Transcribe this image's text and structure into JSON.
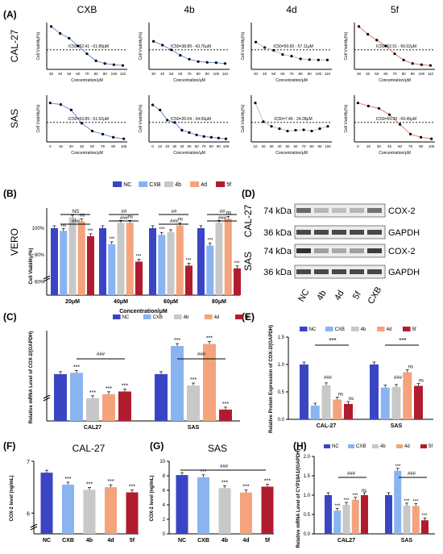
{
  "panel_letters": [
    "(A)",
    "(B)",
    "(C)",
    "(D)",
    "(E)",
    "(F)",
    "(G)",
    "(H)"
  ],
  "colors": {
    "NC": "#3a45c4",
    "CXB": "#8ab4f0",
    "4b": "#c8c8c8",
    "4d": "#f4a37d",
    "5f": "#b01c2e",
    "fit_blue": "#6f8fd8",
    "fit_gray": "#bdbdbd",
    "fit_red": "#e87a6e",
    "sig": "#000000"
  },
  "panelA": {
    "col_titles": [
      "CXB",
      "4b",
      "4d",
      "5f"
    ],
    "row_labels": [
      "CAL-27",
      "SAS"
    ],
    "ylabel": "Cell Viability(%)",
    "xlabel": "Concentration/μM",
    "ic50_texts": [
      [
        "IC50=52.41 - 61.89μM",
        "IC50=38.89 - 43.76μM",
        "IC50=50.60 - 57.11μM",
        "IC50=62.51 - 66.02μM"
      ],
      [
        "IC50=53.89 - 61.52μM",
        "IC50=26.04 - 34.59μM",
        "IC50=7.46 - 24.28μM",
        "IC50=59.39 - 69.49μM"
      ]
    ],
    "row1_xticks": [
      "30",
      "40",
      "50",
      "60",
      "70",
      "80",
      "90",
      "100",
      "110"
    ],
    "row2_xticks_cxb": [
      "0",
      "15",
      "30",
      "45",
      "60",
      "75",
      "90",
      "105"
    ],
    "row2_xticks_4b": [
      "0",
      "10",
      "20",
      "30",
      "40",
      "50",
      "60",
      "70",
      "80",
      "90",
      "100"
    ],
    "row2_xticks_4d": [
      "10",
      "20",
      "30",
      "40",
      "50",
      "60",
      "70",
      "80",
      "90",
      "100"
    ],
    "row2_xticks_5f": [
      "0",
      "15",
      "30",
      "45",
      "60",
      "75",
      "90",
      "105"
    ]
  },
  "legend": {
    "labels": [
      "NC",
      "CXB",
      "4b",
      "4d",
      "5f"
    ]
  },
  "panelD": {
    "kda": [
      "74 kDa",
      "36 kDa",
      "74 kDa",
      "36 kDa"
    ],
    "bands": [
      "COX-2",
      "GAPDH",
      "COX-2",
      "GAPDH"
    ],
    "rows": [
      "CAL-27",
      "SAS"
    ],
    "lanes": [
      "NC",
      "4b",
      "4d",
      "5f",
      "CXB"
    ]
  },
  "sig": {
    "ns": "ns",
    "NS": "NS",
    "s1": "*",
    "s3": "***",
    "h2": "##",
    "h3": "###"
  },
  "chart_data": [
    {
      "id": "A",
      "type": "scatter",
      "note": "8 dose-response panels (CXB, 4b, 4d, 5f × CAL-27, SAS) with sigmoid fits; dashed line at 50%",
      "panels": [
        {
          "drug": "CXB",
          "cell": "CAL-27",
          "x": [
            30,
            40,
            50,
            60,
            70,
            80,
            90,
            100,
            110
          ],
          "y": [
            110,
            92,
            80,
            60,
            40,
            22,
            15,
            12,
            10
          ]
        },
        {
          "drug": "4b",
          "cell": "CAL-27",
          "x": [
            30,
            40,
            50,
            60,
            70,
            80,
            90,
            100,
            110
          ],
          "y": [
            72,
            62,
            50,
            36,
            26,
            20,
            18,
            17,
            15
          ]
        },
        {
          "drug": "4d",
          "cell": "CAL-27",
          "x": [
            30,
            40,
            50,
            60,
            70,
            80,
            90,
            100,
            110
          ],
          "y": [
            70,
            56,
            49,
            38,
            34,
            27,
            25,
            24,
            24
          ]
        },
        {
          "drug": "5f",
          "cell": "CAL-27",
          "x": [
            30,
            40,
            50,
            60,
            70,
            80,
            90,
            100,
            110
          ],
          "y": [
            110,
            90,
            75,
            60,
            40,
            24,
            15,
            12,
            10
          ]
        },
        {
          "drug": "CXB",
          "cell": "SAS",
          "x": [
            0,
            15,
            30,
            45,
            60,
            75,
            90,
            105
          ],
          "y": [
            100,
            96,
            82,
            48,
            28,
            20,
            12,
            8
          ]
        },
        {
          "drug": "4b",
          "cell": "SAS",
          "x": [
            0,
            10,
            20,
            30,
            40,
            50,
            60,
            70,
            80,
            90,
            100
          ],
          "y": [
            95,
            82,
            56,
            50,
            30,
            24,
            18,
            14,
            12,
            10,
            8
          ]
        },
        {
          "drug": "4d",
          "cell": "SAS",
          "x": [
            10,
            20,
            30,
            40,
            50,
            60,
            70,
            80,
            90,
            100
          ],
          "y": [
            100,
            52,
            40,
            34,
            28,
            30,
            31,
            28,
            34,
            40
          ]
        },
        {
          "drug": "5f",
          "cell": "SAS",
          "x": [
            0,
            15,
            30,
            45,
            60,
            75,
            90,
            105
          ],
          "y": [
            100,
            92,
            86,
            70,
            45,
            20,
            12,
            8
          ]
        }
      ]
    },
    {
      "id": "B",
      "type": "bar",
      "ylabel": "Cell Viability(%)",
      "xlabel": "Concentration/μM",
      "side_label": "VERO",
      "categories": [
        "20μM",
        "40μM",
        "60μM",
        "80μM"
      ],
      "yticks": [
        "60%",
        "80%",
        "100%"
      ],
      "series": [
        {
          "name": "NC",
          "values": [
            100,
            100,
            100,
            100
          ]
        },
        {
          "name": "CXB",
          "values": [
            98,
            88,
            95,
            87
          ]
        },
        {
          "name": "4b",
          "values": [
            108,
            104,
            97,
            104
          ]
        },
        {
          "name": "4d",
          "values": [
            105,
            104,
            102,
            107
          ]
        },
        {
          "name": "5f",
          "values": [
            94,
            75,
            72,
            70
          ]
        }
      ]
    },
    {
      "id": "C",
      "type": "bar",
      "ylabel": "Relative mRNA Level of COX-2/(GAPDH)",
      "categories": [
        "CAL27",
        "SAS"
      ],
      "series": [
        {
          "name": "NC",
          "values": [
            1.0,
            1.0
          ]
        },
        {
          "name": "CXB",
          "values": [
            1.02,
            1.42
          ]
        },
        {
          "name": "4b",
          "values": [
            0.64,
            0.83
          ]
        },
        {
          "name": "4d",
          "values": [
            0.7,
            1.45
          ]
        },
        {
          "name": "5f",
          "values": [
            0.74,
            0.47
          ]
        }
      ]
    },
    {
      "id": "E",
      "type": "bar",
      "ylabel": "Relative Protein Expression of COX-2/(GAPDH)",
      "categories": [
        "CAL-27",
        "SAS"
      ],
      "yticks": [
        "0.0",
        "0.5",
        "1.0",
        "1.5"
      ],
      "ylim": [
        0,
        1.5
      ],
      "series": [
        {
          "name": "NC",
          "values": [
            1.0,
            1.0
          ]
        },
        {
          "name": "CXB",
          "values": [
            0.25,
            0.58
          ]
        },
        {
          "name": "4b",
          "values": [
            0.62,
            0.59
          ]
        },
        {
          "name": "4d",
          "values": [
            0.36,
            0.86
          ]
        },
        {
          "name": "5f",
          "values": [
            0.28,
            0.61
          ]
        }
      ]
    },
    {
      "id": "F",
      "type": "bar",
      "title": "CAL-27",
      "ylabel": "COX-2 level (ng/mL)",
      "categories": [
        "NC",
        "CXB",
        "4b",
        "4d",
        "5f"
      ],
      "yticks": [
        "6",
        "7"
      ],
      "values": [
        6.78,
        6.55,
        6.45,
        6.5,
        6.4
      ]
    },
    {
      "id": "G",
      "type": "bar",
      "title": "SAS",
      "ylabel": "COX-2 level (ng/mL)",
      "categories": [
        "NC",
        "CXB",
        "4b",
        "4d",
        "5f"
      ],
      "yticks": [
        "0",
        "2",
        "4",
        "6",
        "8",
        "10"
      ],
      "ylim": [
        0,
        10
      ],
      "values": [
        8.1,
        7.8,
        6.3,
        5.7,
        6.5
      ]
    },
    {
      "id": "H",
      "type": "bar",
      "ylabel": "Relative mRNA Level of CYP19A1/(GAPDH)",
      "categories": [
        "CAL27",
        "SAS"
      ],
      "yticks": [
        "0.0",
        "0.5",
        "1.0",
        "1.5",
        "2.0"
      ],
      "ylim": [
        0,
        2.0
      ],
      "series": [
        {
          "name": "NC",
          "values": [
            1.0,
            1.0
          ]
        },
        {
          "name": "CXB",
          "values": [
            0.6,
            1.63
          ]
        },
        {
          "name": "4b",
          "values": [
            0.75,
            0.73
          ]
        },
        {
          "name": "4d",
          "values": [
            0.88,
            0.72
          ]
        },
        {
          "name": "5f",
          "values": [
            1.0,
            0.35
          ]
        }
      ]
    }
  ]
}
